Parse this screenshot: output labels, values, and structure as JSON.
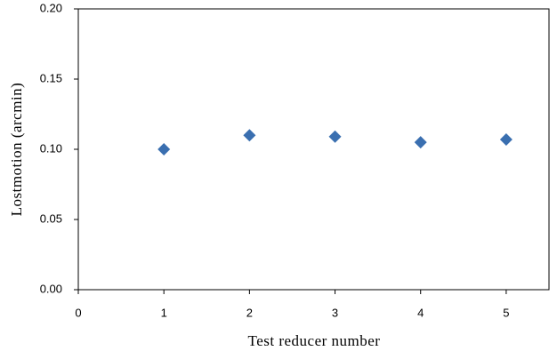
{
  "chart_data": {
    "type": "scatter",
    "x_label": "Test reducer number",
    "y_label": "Lostmotion (arcmin)",
    "x": [
      1,
      2,
      3,
      4,
      5
    ],
    "values": [
      0.1,
      0.11,
      0.109,
      0.105,
      0.107
    ],
    "color": "#3a6fb0",
    "marker": "diamond",
    "xlim": [
      0,
      5.5
    ],
    "ylim": [
      0,
      0.2
    ],
    "xticks": [
      0,
      1,
      2,
      3,
      4,
      5
    ],
    "yticks": [
      {
        "value": 0,
        "label": "0.00"
      },
      {
        "value": 0.05,
        "label": "0.05"
      },
      {
        "value": 0.1,
        "label": "0.10"
      },
      {
        "value": 0.15,
        "label": "0.15"
      },
      {
        "value": 0.2,
        "label": "0.20"
      }
    ],
    "grid": false
  }
}
